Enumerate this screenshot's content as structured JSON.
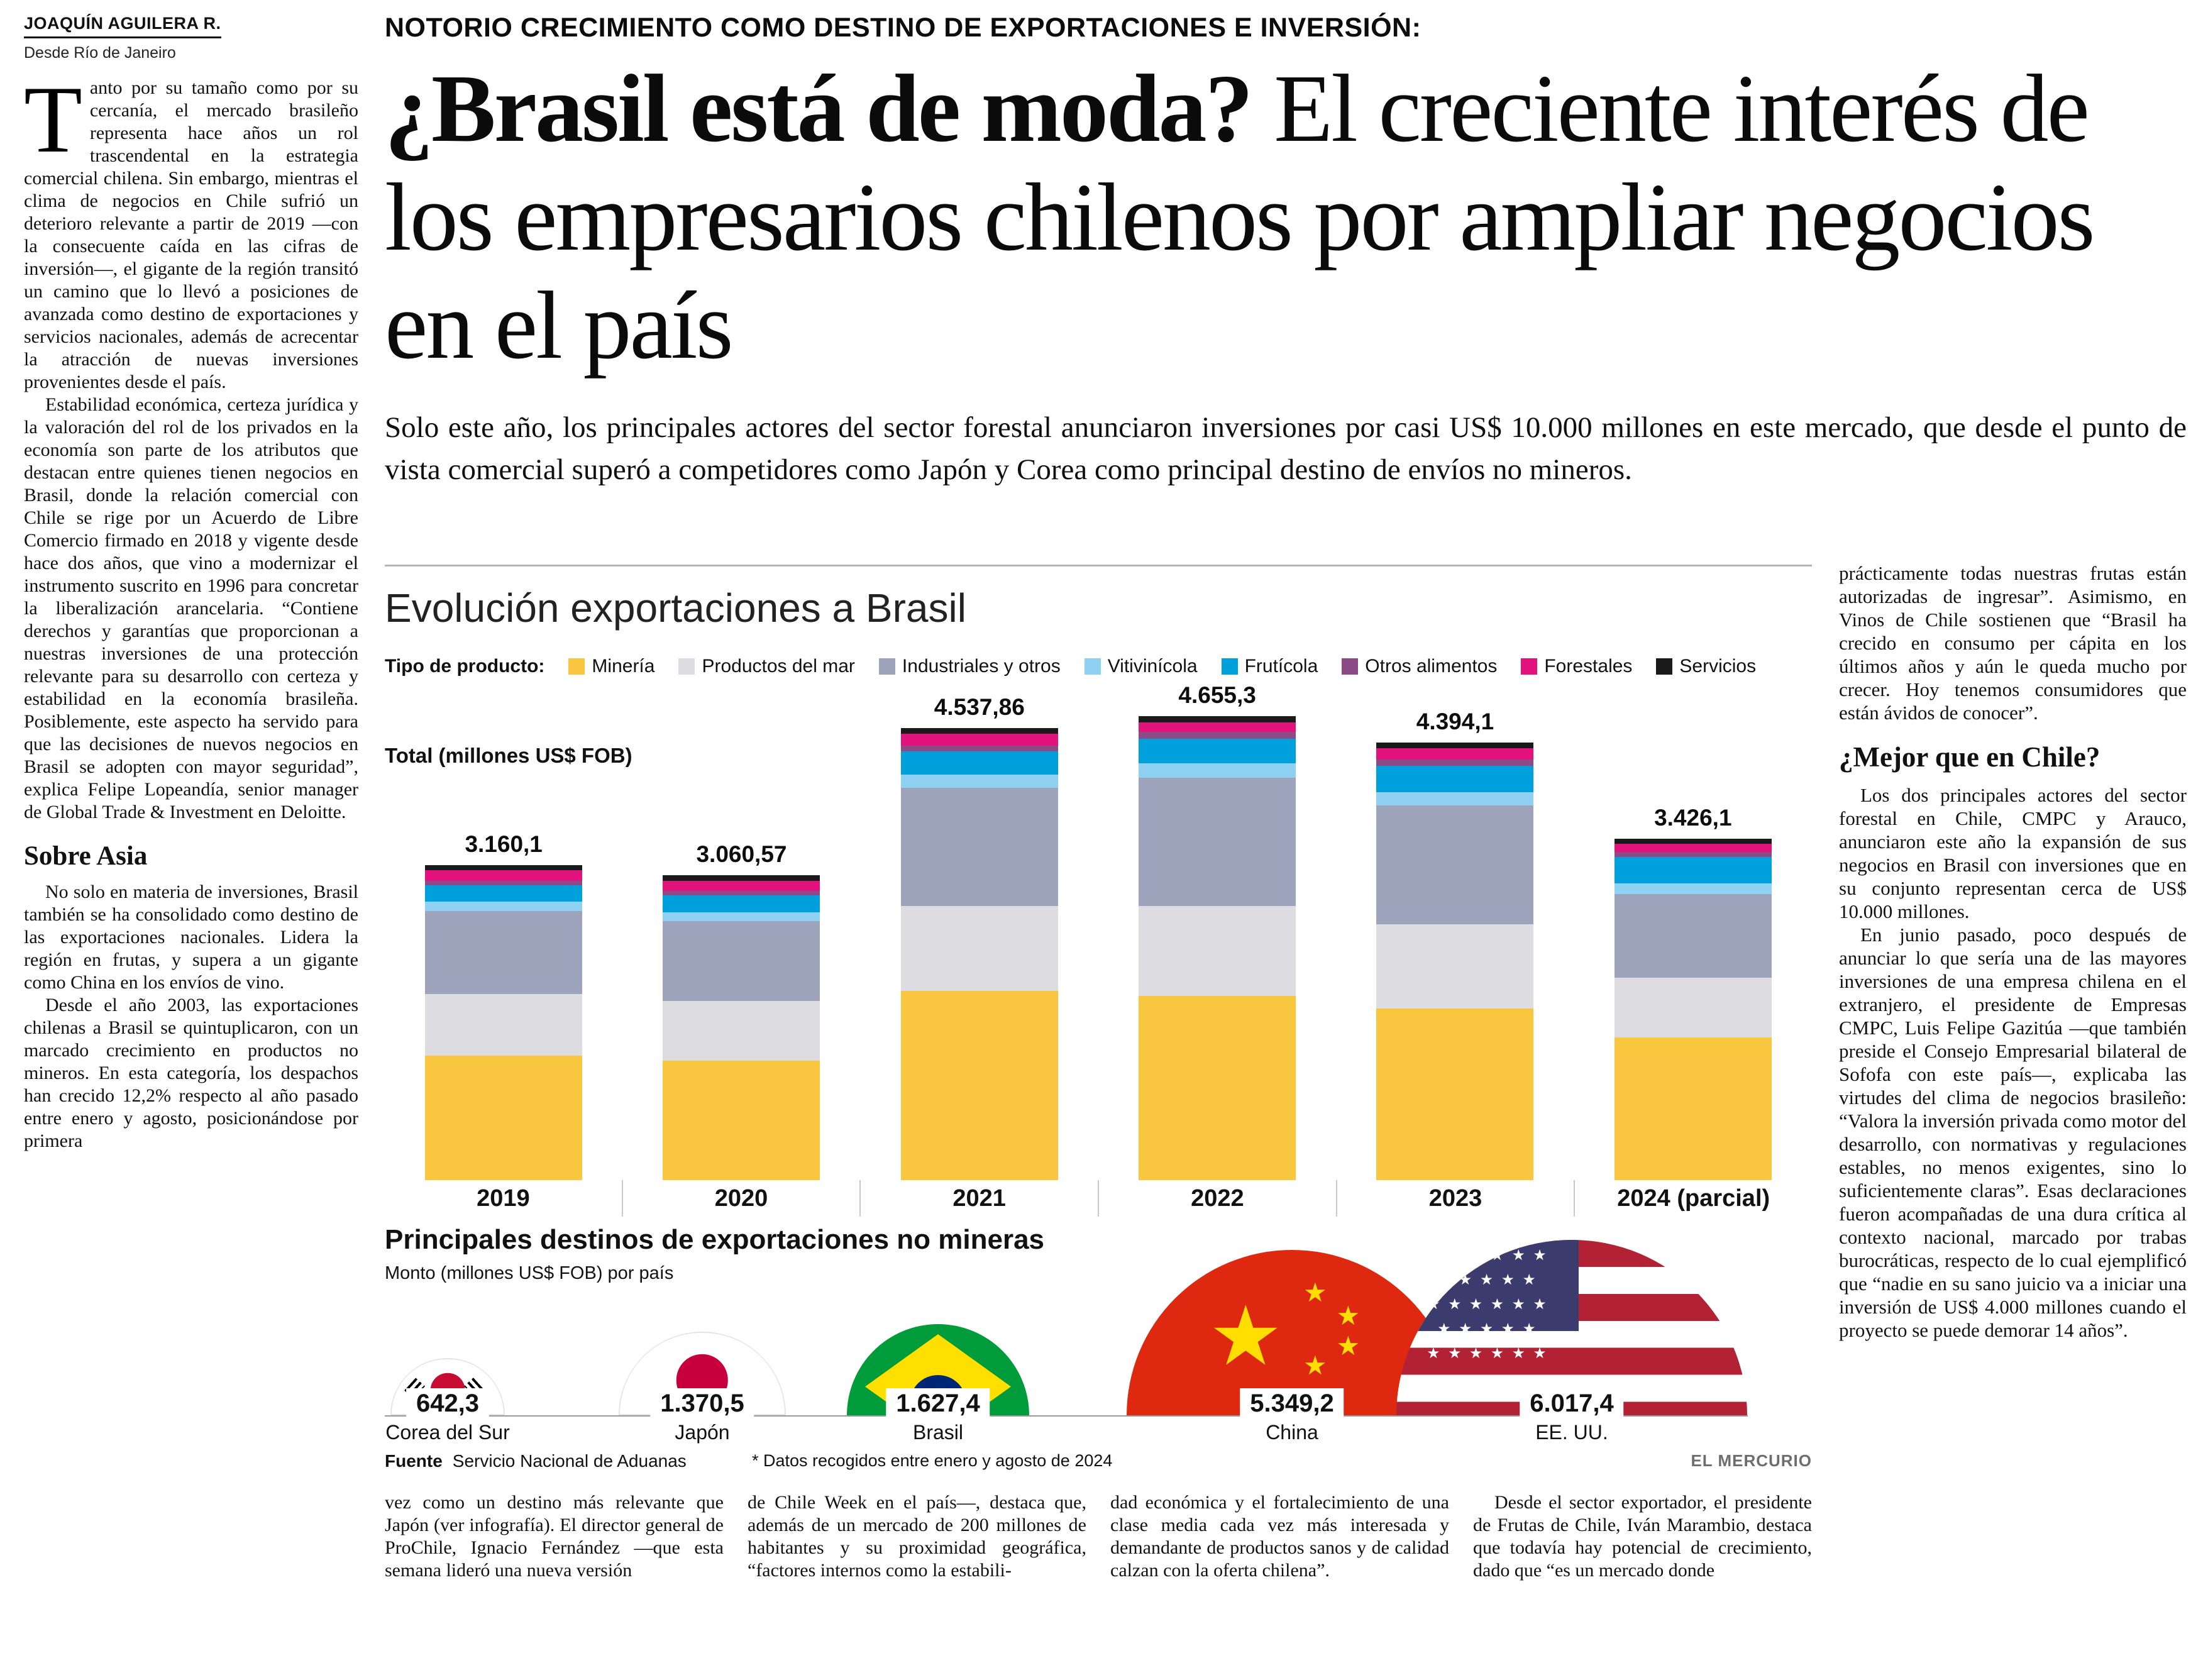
{
  "byline": {
    "author": "JOAQUÍN AGUILERA R.",
    "location": "Desde Río de Janeiro"
  },
  "header": {
    "kicker": "NOTORIO CRECIMIENTO COMO DESTINO DE EXPORTACIONES E INVERSIÓN:",
    "headline_bold": "¿Brasil está de moda?",
    "headline_rest": " El creciente interés de los empresarios chilenos por ampliar negocios en el país",
    "deck": "Solo este año, los principales actores del sector forestal anunciaron inversiones por casi US$ 10.000 millones en este mercado, que desde el punto de vista comercial superó a competidores como Japón y Corea como principal destino de envíos no mineros."
  },
  "left_column": {
    "dropcap": "T",
    "paragraphs": [
      "anto por su tamaño como por su cercanía, el mercado brasileño representa hace años un rol trascendental en la estrategia comercial chilena. Sin embargo, mientras el clima de negocios en Chile sufrió un deterioro relevante a partir de 2019 —con la consecuente caída en las cifras de inversión—, el gigante de la región transitó un camino que lo llevó a posiciones de avanzada como destino de exportaciones y servicios nacionales, además de acrecentar la atracción de nuevas inversiones provenientes desde el país.",
      "Estabilidad económica, certeza jurídica y la valoración del rol de los privados en la economía son parte de los atributos que destacan entre quienes tienen negocios en Brasil, donde la relación comercial con Chile se rige por un Acuerdo de Libre Comercio firmado en 2018 y vigente desde hace dos años, que vino a modernizar el instrumento suscrito en 1996 para concretar la liberalización arancelaria. “Contiene derechos y garantías que proporcionan a nuestras inversiones de una protección relevante para su desarrollo con certeza y estabilidad en la economía brasileña. Posiblemente, este aspecto ha servido para que las decisiones de nuevos negocios en Brasil se adopten con mayor seguridad”, explica Felipe Lopeandía, senior manager de Global Trade & Investment en Deloitte."
    ],
    "section_title": "Sobre Asia",
    "section_paragraphs": [
      "No solo en materia de inversiones, Brasil también se ha consolidado como destino de las exportaciones nacionales. Lidera la región en frutas, y supera a un gigante como China en los envíos de vino.",
      "Desde el año 2003, las exportaciones chilenas a Brasil se quintuplicaron, con un marcado crecimiento en productos no mineros. En esta categoría, los despachos han crecido 12,2% respecto al año pasado entre enero y agosto, posicionándose por primera"
    ]
  },
  "bottom_columns": [
    "vez como un destino más relevante que Japón (ver infografía). El director general de ProChile, Ignacio Fernández —que esta semana lideró una nueva versión",
    "de Chile Week en el país—, destaca que, además de un mercado de 200 millones de habitantes y su proximidad geográfica, “factores internos como la estabili-",
    "dad económica y el fortalecimiento de una clase media cada vez más interesada y demandante de productos sanos y de calidad calzan con la oferta chilena”.",
    "Desde el sector exportador, el presidente de Frutas de Chile, Iván Marambio, destaca que todavía hay potencial de crecimiento, dado que “es un mercado donde"
  ],
  "right_column": {
    "lead": "prácticamente todas nuestras frutas están autorizadas de ingresar”. Asimismo, en Vinos de Chile sostienen que “Brasil ha crecido en consumo per cápita en los últimos años y aún le queda mucho por crecer. Hoy tenemos consumidores que están ávidos de conocer”.",
    "section_title": "¿Mejor que en Chile?",
    "paragraphs": [
      "Los dos principales actores del sector forestal en Chile, CMPC y Arauco, anunciaron este año la expansión de sus negocios en Brasil con inversiones que en su conjunto representan cerca de US$ 10.000 millones.",
      "En junio pasado, poco después de anunciar lo que sería una de las mayores inversiones de una empresa chilena en el extranjero, el presidente de Empresas CMPC, Luis Felipe Gazitúa —que también preside el Consejo Empresarial bilateral de Sofofa con este país—, explicaba las virtudes del clima de negocios brasileño: “Valora la inversión privada como motor del desarrollo, con normativas y regulaciones estables, no menos exigentes, sino lo suficientemente claras”. Esas declaraciones fueron acompañadas de una dura crítica al contexto nacional, marcado por trabas burocráticas, respecto de lo cual ejemplificó que “nadie en su sano juicio va a iniciar una inversión de US$ 4.000 millones cuando el proyecto se puede demorar 14 años”."
    ]
  },
  "chart_data": {
    "type": "bar",
    "stacked": true,
    "title": "Evolución exportaciones a Brasil",
    "legend_label": "Tipo de producto:",
    "unit_label": "Total (millones US$ FOB)",
    "categories": [
      "2019",
      "2020",
      "2021",
      "2022",
      "2023",
      "2024 (parcial)"
    ],
    "totals_display": [
      "3.160,1",
      "3.060,57",
      "4.537,86",
      "4.655,3",
      "4.394,1",
      "3.426,1"
    ],
    "totals_numeric": [
      3160.1,
      3060.57,
      4537.86,
      4655.3,
      4394.1,
      3426.1
    ],
    "ylim": [
      0,
      4700
    ],
    "series": [
      {
        "name": "Minería",
        "color": "#F8C63F",
        "values": [
          1250,
          1200,
          1900,
          1850,
          1720,
          1430
        ]
      },
      {
        "name": "Productos del mar",
        "color": "#DCDCE1",
        "values": [
          620,
          600,
          850,
          900,
          850,
          600
        ]
      },
      {
        "name": "Industriales y otros",
        "color": "#9EA3BC",
        "values": [
          830,
          800,
          1190,
          1290,
          1190,
          840
        ]
      },
      {
        "name": "Vitivinícola",
        "color": "#8ED1F2",
        "values": [
          95,
          90,
          130,
          140,
          135,
          110
        ]
      },
      {
        "name": "Frutícola",
        "color": "#00A0DC",
        "values": [
          160,
          165,
          230,
          250,
          265,
          260
        ]
      },
      {
        "name": "Otros alimentos",
        "color": "#8C4A86",
        "values": [
          45,
          45,
          60,
          65,
          64,
          56
        ]
      },
      {
        "name": "Forestales",
        "color": "#E4127C",
        "values": [
          110,
          105,
          120,
          100,
          110,
          80
        ]
      },
      {
        "name": "Servicios",
        "color": "#1A1A1A",
        "values": [
          50,
          55,
          58,
          60,
          60,
          50
        ]
      }
    ]
  },
  "destinations": {
    "title": "Principales destinos de exportaciones no mineras",
    "subtitle": "Monto (millones US$ FOB) por país",
    "items": [
      {
        "country": "Corea del Sur",
        "value": "642,3",
        "value_numeric": 642.3,
        "flag": "south-korea"
      },
      {
        "country": "Japón",
        "value": "1.370,5",
        "value_numeric": 1370.5,
        "flag": "japan"
      },
      {
        "country": "Brasil",
        "value": "1.627,4",
        "value_numeric": 1627.4,
        "flag": "brazil"
      },
      {
        "country": "China",
        "value": "5.349,2",
        "value_numeric": 5349.2,
        "flag": "china"
      },
      {
        "country": "EE. UU.",
        "value": "6.017,4",
        "value_numeric": 6017.4,
        "flag": "usa"
      }
    ]
  },
  "footer": {
    "source_label": "Fuente",
    "source": "Servicio Nacional de Aduanas",
    "note": "* Datos recogidos entre enero y agosto de 2024",
    "credit": "EL MERCURIO"
  }
}
